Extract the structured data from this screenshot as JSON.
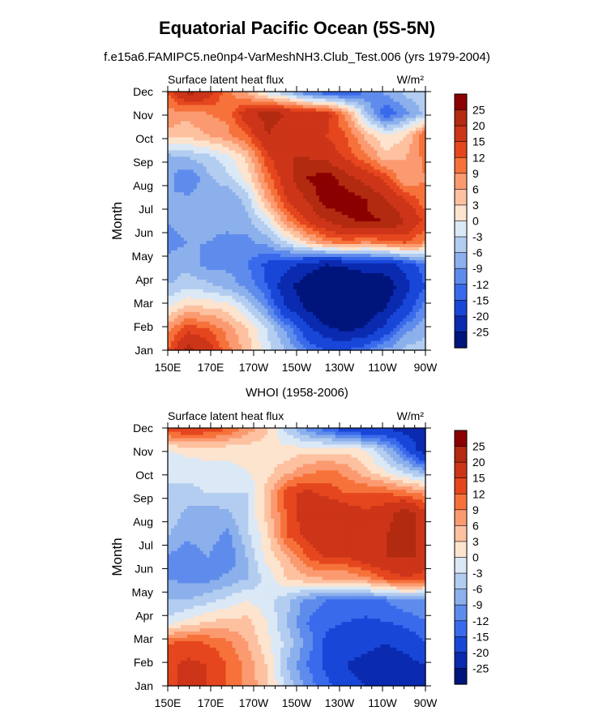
{
  "figure": {
    "title": "Equatorial Pacific Ocean (5S-5N)",
    "subtitle": "f.e15a6.FAMIPC5.ne0np4-VarMeshNH3.Club_Test.006 (yrs 1979-2004)",
    "subtitle2": "WHOI (1958-2006)"
  },
  "chart_data": [
    {
      "type": "heatmap",
      "panel_label_left": "Surface latent heat flux",
      "panel_label_right": "W/m²",
      "ylabel": "Month",
      "x_ticks": [
        "150E",
        "170E",
        "170W",
        "150W",
        "130W",
        "110W",
        "90W"
      ],
      "y_ticks": [
        "Jan",
        "Feb",
        "Mar",
        "Apr",
        "May",
        "Jun",
        "Jul",
        "Aug",
        "Sep",
        "Oct",
        "Nov",
        "Dec"
      ],
      "colorbar_labels": [
        "25",
        "20",
        "15",
        "12",
        "9",
        "6",
        "3",
        "0",
        "-3",
        "-6",
        "-9",
        "-12",
        "-15",
        "-20",
        "-25"
      ],
      "colorbar_colors": [
        "#8b0000",
        "#b22a10",
        "#cd3519",
        "#e5461e",
        "#f6723a",
        "#fb9a70",
        "#fdc1a0",
        "#fde4cf",
        "#dbe8f6",
        "#b3cdf0",
        "#8cb0ec",
        "#5f8cec",
        "#3a6aec",
        "#1847d8",
        "#0a2ab0",
        "#00157c"
      ],
      "grid": [
        [
          12,
          22,
          18,
          10,
          5,
          -2,
          -6,
          -12,
          -15,
          -15,
          -12,
          -8,
          -5,
          -4
        ],
        [
          8,
          14,
          12,
          8,
          3,
          -3,
          -10,
          -18,
          -24,
          -26,
          -24,
          -18,
          -10,
          -7
        ],
        [
          0,
          4,
          3,
          2,
          -3,
          -10,
          -20,
          -26,
          -30,
          -30,
          -30,
          -25,
          -18,
          -10
        ],
        [
          -6,
          -4,
          -5,
          -7,
          -10,
          -15,
          -24,
          -28,
          -30,
          -30,
          -30,
          -28,
          -22,
          -15
        ],
        [
          -8,
          -7,
          -10,
          -10,
          -12,
          -16,
          -18,
          -22,
          -25,
          -24,
          -22,
          -22,
          -18,
          -12
        ],
        [
          -10,
          -9,
          -9,
          -10,
          -10,
          -8,
          -3,
          3,
          8,
          10,
          8,
          10,
          12,
          8
        ],
        [
          -9,
          -8,
          -8,
          -8,
          -7,
          -2,
          8,
          15,
          20,
          24,
          26,
          25,
          20,
          14
        ],
        [
          -9,
          -8,
          -8,
          -9,
          -5,
          6,
          15,
          20,
          28,
          28,
          25,
          20,
          15,
          10
        ],
        [
          -8,
          -12,
          -7,
          -4,
          1,
          10,
          18,
          25,
          28,
          22,
          18,
          14,
          6,
          9
        ],
        [
          -7,
          -6,
          -4,
          -1,
          4,
          14,
          20,
          20,
          18,
          14,
          10,
          4,
          6,
          10
        ],
        [
          5,
          4,
          6,
          8,
          12,
          20,
          18,
          18,
          15,
          12,
          5,
          0,
          3,
          12
        ],
        [
          8,
          7,
          9,
          10,
          18,
          22,
          20,
          18,
          17,
          8,
          -5,
          -15,
          -10,
          -5
        ],
        [
          12,
          22,
          18,
          10,
          5,
          -2,
          -6,
          -12,
          -15,
          -15,
          -12,
          -8,
          -5,
          -4
        ]
      ]
    },
    {
      "type": "heatmap",
      "panel_label_left": "Surface latent heat flux",
      "panel_label_right": "W/m²",
      "ylabel": "Month",
      "x_ticks": [
        "150E",
        "170E",
        "170W",
        "150W",
        "130W",
        "110W",
        "90W"
      ],
      "y_ticks": [
        "Jan",
        "Feb",
        "Mar",
        "Apr",
        "May",
        "Jun",
        "Jul",
        "Aug",
        "Sep",
        "Oct",
        "Nov",
        "Dec"
      ],
      "colorbar_labels": [
        "25",
        "20",
        "15",
        "12",
        "9",
        "6",
        "3",
        "0",
        "-3",
        "-6",
        "-9",
        "-12",
        "-15",
        "-20",
        "-25"
      ],
      "colorbar_colors": [
        "#8b0000",
        "#b22a10",
        "#cd3519",
        "#e5461e",
        "#f6723a",
        "#fb9a70",
        "#fdc1a0",
        "#fde4cf",
        "#dbe8f6",
        "#b3cdf0",
        "#8cb0ec",
        "#5f8cec",
        "#3a6aec",
        "#1847d8",
        "#0a2ab0",
        "#00157c"
      ],
      "grid": [
        [
          14,
          16,
          15,
          12,
          8,
          4,
          -4,
          -10,
          -14,
          -18,
          -20,
          -20,
          -22,
          -24
        ],
        [
          14,
          16,
          15,
          12,
          8,
          3,
          -6,
          -12,
          -16,
          -20,
          -22,
          -24,
          -22,
          -20
        ],
        [
          12,
          13,
          12,
          10,
          6,
          1,
          -4,
          -10,
          -16,
          -18,
          -18,
          -20,
          -18,
          -15
        ],
        [
          -2,
          1,
          3,
          4,
          4,
          0,
          -6,
          -12,
          -14,
          -15,
          -16,
          -15,
          -14,
          -12
        ],
        [
          -6,
          -6,
          -4,
          -2,
          0,
          -2,
          -5,
          -10,
          -12,
          -12,
          -12,
          -12,
          -10,
          -10
        ],
        [
          -9,
          -10,
          -10,
          -8,
          -6,
          -2,
          3,
          5,
          6,
          6,
          8,
          12,
          15,
          12
        ],
        [
          -9,
          -12,
          -9,
          -12,
          -6,
          1,
          5,
          12,
          15,
          15,
          18,
          20,
          20,
          20
        ],
        [
          -6,
          -8,
          -7,
          -10,
          -4,
          2,
          12,
          16,
          20,
          15,
          18,
          20,
          22,
          18
        ],
        [
          -4,
          -7,
          -8,
          -7,
          -3,
          4,
          12,
          18,
          20,
          18,
          16,
          18,
          24,
          16
        ],
        [
          -4,
          -4,
          -3,
          -3,
          -3,
          4,
          14,
          16,
          14,
          12,
          12,
          12,
          10,
          8
        ],
        [
          -2,
          -2,
          -1,
          -1,
          0,
          2,
          5,
          8,
          10,
          8,
          4,
          0,
          -4,
          -8
        ],
        [
          0,
          1,
          1,
          1,
          1,
          1,
          1,
          2,
          2,
          2,
          0,
          -6,
          -14,
          -24
        ],
        [
          14,
          16,
          15,
          12,
          8,
          4,
          -4,
          -10,
          -14,
          -18,
          -20,
          -20,
          -22,
          -24
        ]
      ]
    }
  ]
}
